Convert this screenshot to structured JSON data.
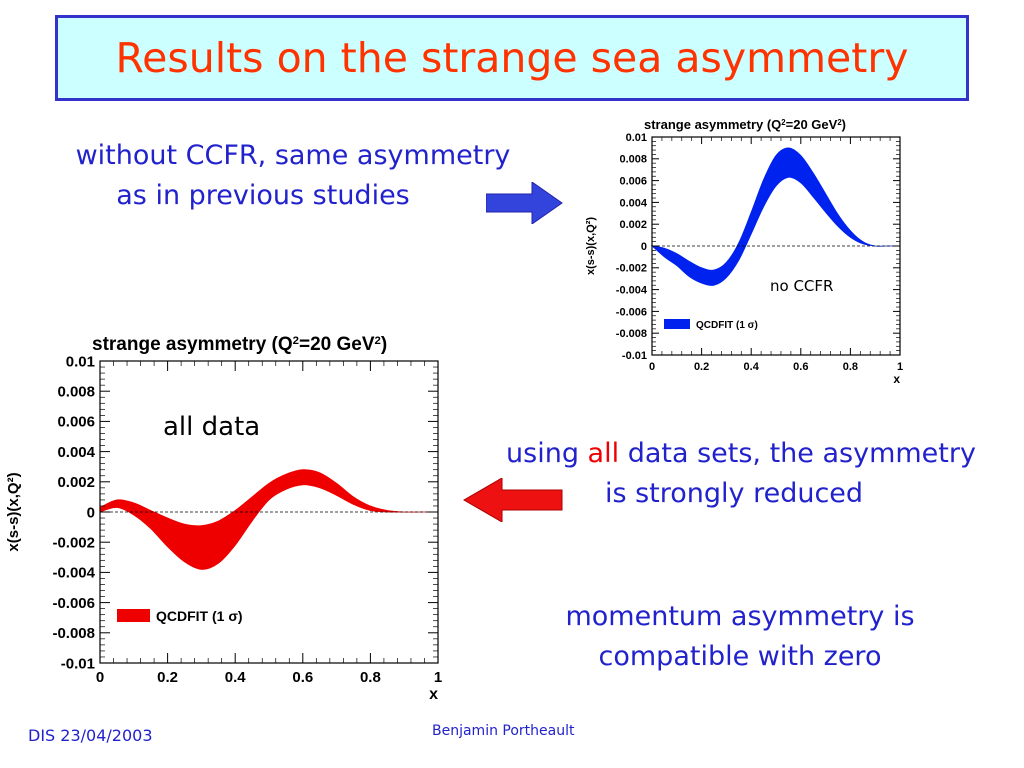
{
  "title": "Results on the strange sea asymmetry",
  "notes": {
    "no_ccfr_line1": "without CCFR, same asymmetry",
    "no_ccfr_line2": "as in previous studies",
    "all_prefix": "using ",
    "all_highlight": "all",
    "all_suffix": " data sets, the asymmetry",
    "all_line2": "is strongly reduced",
    "momentum_line1": "momentum asymmetry is",
    "momentum_line2": "compatible with zero"
  },
  "footer": {
    "left": "DIS 23/04/2003",
    "center": "Benjamin Portheault"
  },
  "colors": {
    "accent_blue": "#2222cc",
    "title_red": "#ff3300",
    "title_bg": "#ccffff",
    "band_blue": "#0022ee",
    "band_red": "#ee0000"
  },
  "chart_data": [
    {
      "id": "no-ccfr",
      "type": "area",
      "title_prefix": "strange asymmetry  (Q",
      "title_sup": "2",
      "title_suffix": "=20 GeV",
      "title_sup2": "2",
      "title_close": ")",
      "xlabel": "x",
      "ylabel": "x(s-s)(x,Q²)",
      "xlim": [
        0,
        1
      ],
      "ylim": [
        -0.01,
        0.01
      ],
      "xticks": [
        "0",
        "0.2",
        "0.4",
        "0.6",
        "0.8",
        "1"
      ],
      "yticks": [
        "0.01",
        "0.008",
        "0.006",
        "0.004",
        "0.002",
        "0",
        "-0.002",
        "-0.004",
        "-0.006",
        "-0.008",
        "-0.01"
      ],
      "annotation": "no CCFR",
      "legend": "QCDFIT (1 σ)",
      "band_color": "#0022ee",
      "x": [
        0,
        0.05,
        0.1,
        0.15,
        0.2,
        0.25,
        0.3,
        0.35,
        0.4,
        0.45,
        0.5,
        0.55,
        0.6,
        0.65,
        0.7,
        0.75,
        0.8,
        0.85,
        0.9,
        0.95,
        1.0
      ],
      "upper": [
        0,
        -0.0002,
        -0.0007,
        -0.0014,
        -0.002,
        -0.0022,
        -0.0015,
        0.0003,
        0.0031,
        0.0061,
        0.0083,
        0.009,
        0.0083,
        0.0067,
        0.0048,
        0.0029,
        0.0014,
        0.0004,
        0,
        0,
        0
      ],
      "lower": [
        0,
        -0.001,
        -0.0018,
        -0.0028,
        -0.0034,
        -0.0036,
        -0.0029,
        -0.0013,
        0.0011,
        0.0036,
        0.0055,
        0.0063,
        0.0058,
        0.0045,
        0.0031,
        0.0018,
        0.0008,
        0.0002,
        0,
        0,
        0
      ]
    },
    {
      "id": "all-data",
      "type": "area",
      "title_prefix": "strange asymmetry  (Q",
      "title_sup": "2",
      "title_suffix": "=20 GeV",
      "title_sup2": "2",
      "title_close": ")",
      "xlabel": "x",
      "ylabel": "x(s-s)(x,Q²)",
      "xlim": [
        0,
        1
      ],
      "ylim": [
        -0.01,
        0.01
      ],
      "xticks": [
        "0",
        "0.2",
        "0.4",
        "0.6",
        "0.8",
        "1"
      ],
      "yticks": [
        "0.01",
        "0.008",
        "0.006",
        "0.004",
        "0.002",
        "0",
        "-0.002",
        "-0.004",
        "-0.006",
        "-0.008",
        "-0.01"
      ],
      "annotation": "all data",
      "legend": "QCDFIT (1 σ)",
      "band_color": "#ee0000",
      "x": [
        0,
        0.05,
        0.1,
        0.15,
        0.2,
        0.25,
        0.3,
        0.35,
        0.4,
        0.45,
        0.5,
        0.55,
        0.6,
        0.65,
        0.7,
        0.75,
        0.8,
        0.85,
        0.9,
        0.95,
        1.0
      ],
      "upper": [
        0.0003,
        0.0008,
        0.0006,
        0.0001,
        -0.0004,
        -0.0008,
        -0.0009,
        -0.0006,
        0.0001,
        0.001,
        0.0019,
        0.0025,
        0.0028,
        0.0026,
        0.0019,
        0.001,
        0.0004,
        0.0001,
        0,
        0,
        0
      ],
      "lower": [
        0,
        0.0003,
        -0.0002,
        -0.0011,
        -0.0023,
        -0.0033,
        -0.0038,
        -0.0034,
        -0.0022,
        -0.0006,
        0.0008,
        0.0015,
        0.0018,
        0.0016,
        0.0011,
        0.0005,
        0.0001,
        0,
        0,
        0,
        0
      ]
    }
  ]
}
